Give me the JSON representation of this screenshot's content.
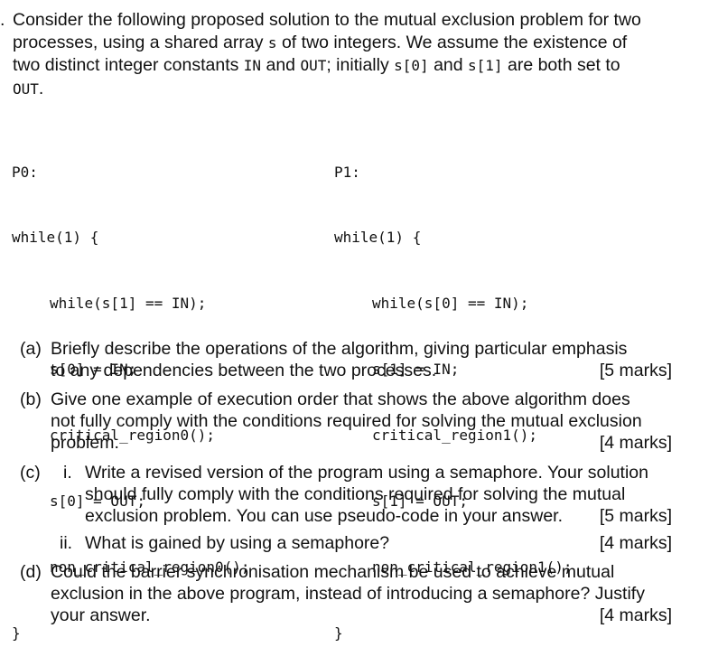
{
  "intro": {
    "bullet": ".",
    "line1": "Consider the following proposed solution to the mutual exclusion problem for two",
    "line2a": "processes, using a shared array ",
    "line2code": "s",
    "line2b": " of two integers. We assume the existence of",
    "line3a": "two distinct integer constants ",
    "line3code1": "IN",
    "line3b": " and ",
    "line3code2": "OUT",
    "line3c": "; initially ",
    "line3code3": "s[0]",
    "line3d": " and ",
    "line3code4": "s[1]",
    "line3e": " are both set to",
    "line4code": "OUT",
    "line4": "."
  },
  "code": {
    "p0": {
      "label": "P0:",
      "loop": "while(1) {",
      "body": [
        "while(s[1] == IN);",
        "s[0] = IN;",
        "critical_region0();",
        "s[0] = OUT;",
        "non_critical_region0();"
      ],
      "close": "}"
    },
    "p1": {
      "label": "P1:",
      "loop": "while(1) {",
      "body": [
        "while(s[0] == IN);",
        "s[1] = IN;",
        "critical_region1();",
        "s[1] = OUT;",
        "non_critical_region1();"
      ],
      "close": "}"
    }
  },
  "questions": {
    "a": {
      "label": "(a)",
      "line1": "Briefly describe the operations of the algorithm, giving particular emphasis",
      "line2": "to any dependencies between the two processes.",
      "marks": "[5 marks]"
    },
    "b": {
      "label": "(b)",
      "line1": "Give one example of execution order that shows the above algorithm does",
      "line2": "not fully comply with the conditions required for solving the mutual exclusion",
      "line3": "problem.",
      "marks": "[4 marks]"
    },
    "c": {
      "label": "(c)",
      "i": {
        "num": "i.",
        "line1": "Write a revised version of the program using a semaphore. Your solution",
        "line2": "should fully comply with the conditions required for solving the mutual",
        "line3": "exclusion problem. You can use pseudo-code in your answer.",
        "marks": "[5 marks]"
      },
      "ii": {
        "num": "ii.",
        "line1": "What is gained by using a semaphore?",
        "marks": "[4 marks]"
      }
    },
    "d": {
      "label": "(d)",
      "line1": "Could the barrier synchronisation mechanism be used to achieve mutual",
      "line2": "exclusion in the above program, instead of introducing a semaphore? Justify",
      "line3": "your answer.",
      "marks": "[4 marks]"
    }
  }
}
